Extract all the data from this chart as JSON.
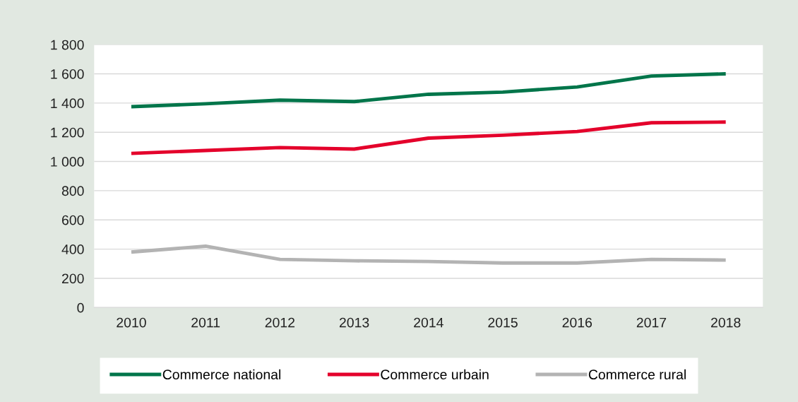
{
  "chart_data": {
    "type": "line",
    "categories": [
      "2010",
      "2011",
      "2012",
      "2013",
      "2014",
      "2015",
      "2016",
      "2017",
      "2018"
    ],
    "series": [
      {
        "name": "Commerce national",
        "color": "#00754a",
        "values": [
          1375,
          1395,
          1420,
          1410,
          1460,
          1475,
          1510,
          1585,
          1600
        ]
      },
      {
        "name": "Commerce urbain",
        "color": "#e4002b",
        "values": [
          1055,
          1075,
          1095,
          1085,
          1160,
          1180,
          1205,
          1265,
          1270
        ]
      },
      {
        "name": "Commerce rural",
        "color": "#b3b3b3",
        "values": [
          380,
          420,
          330,
          320,
          315,
          305,
          305,
          330,
          325
        ]
      }
    ],
    "ylim": [
      0,
      1800
    ],
    "yticks": [
      0,
      {
        "value": 200,
        "label": "200"
      },
      {
        "value": 400,
        "label": "400"
      },
      {
        "value": 600,
        "label": "600"
      },
      {
        "value": 800,
        "label": "800"
      },
      {
        "value": 1000,
        "label": "1 000"
      },
      {
        "value": 1200,
        "label": "1 200"
      },
      {
        "value": 1400,
        "label": "1 400"
      },
      {
        "value": 1600,
        "label": "1 600"
      },
      {
        "value": 1800,
        "label": "1 800"
      }
    ],
    "grid": "y",
    "legend": "bottom",
    "marker": "none",
    "line_style": "solid"
  }
}
